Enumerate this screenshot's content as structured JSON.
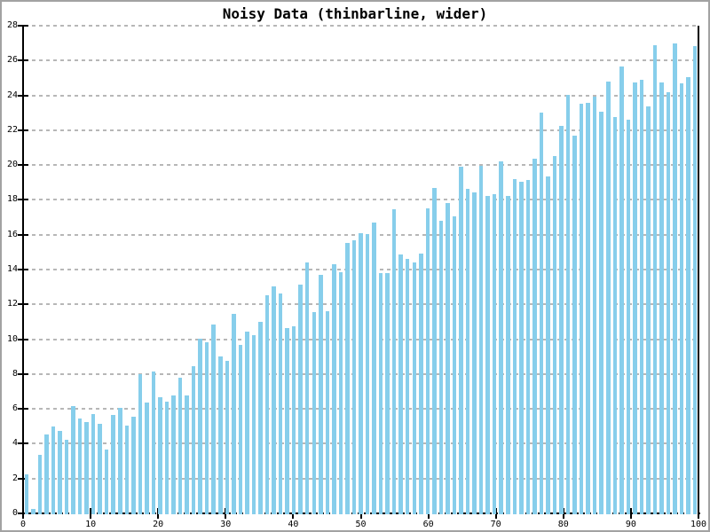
{
  "window": {
    "background": "#ffffff",
    "frame_color": "#a2a2a2"
  },
  "chart_data": {
    "type": "bar",
    "title": "Noisy Data (thinbarline, wider)",
    "xlabel": "",
    "ylabel": "",
    "xlim": [
      0,
      100
    ],
    "ylim": [
      0,
      28
    ],
    "xticks": [
      0,
      10,
      20,
      30,
      40,
      50,
      60,
      70,
      80,
      90,
      100
    ],
    "yticks": [
      0,
      2,
      4,
      6,
      8,
      10,
      12,
      14,
      16,
      18,
      20,
      22,
      24,
      26,
      28
    ],
    "grid": "horizontal-dashed",
    "legend": "none",
    "bar_color": "#87CEEB",
    "axis_color": "#000000",
    "grid_color": "#b7b7b7",
    "x_start": 0,
    "x_step": 1,
    "values": [
      2.3,
      0.3,
      3.4,
      4.6,
      5.05,
      4.8,
      4.3,
      6.2,
      5.5,
      5.3,
      5.75,
      5.2,
      3.7,
      5.7,
      6.1,
      5.1,
      5.6,
      8.05,
      6.4,
      8.2,
      6.7,
      6.45,
      6.8,
      7.85,
      6.8,
      8.5,
      10.1,
      9.9,
      10.9,
      9.05,
      8.8,
      11.5,
      9.7,
      10.5,
      10.3,
      11.05,
      12.55,
      13.1,
      12.7,
      10.7,
      10.8,
      13.2,
      14.45,
      11.6,
      13.75,
      11.65,
      14.35,
      13.9,
      15.6,
      15.75,
      16.15,
      16.1,
      16.75,
      13.85,
      13.85,
      17.5,
      14.9,
      14.65,
      14.45,
      14.95,
      17.55,
      18.75,
      16.85,
      17.85,
      17.1,
      19.95,
      18.7,
      18.5,
      20.0,
      18.3,
      18.4,
      20.28,
      18.3,
      19.25,
      19.1,
      19.2,
      20.4,
      23.07,
      19.4,
      20.57,
      22.3,
      24.1,
      21.75,
      23.57,
      23.63,
      24.0,
      23.13,
      24.82,
      22.79,
      25.72,
      22.67,
      24.8,
      24.96,
      23.4,
      26.95,
      24.8,
      24.25,
      27.03,
      24.74,
      25.08,
      26.9
    ]
  }
}
